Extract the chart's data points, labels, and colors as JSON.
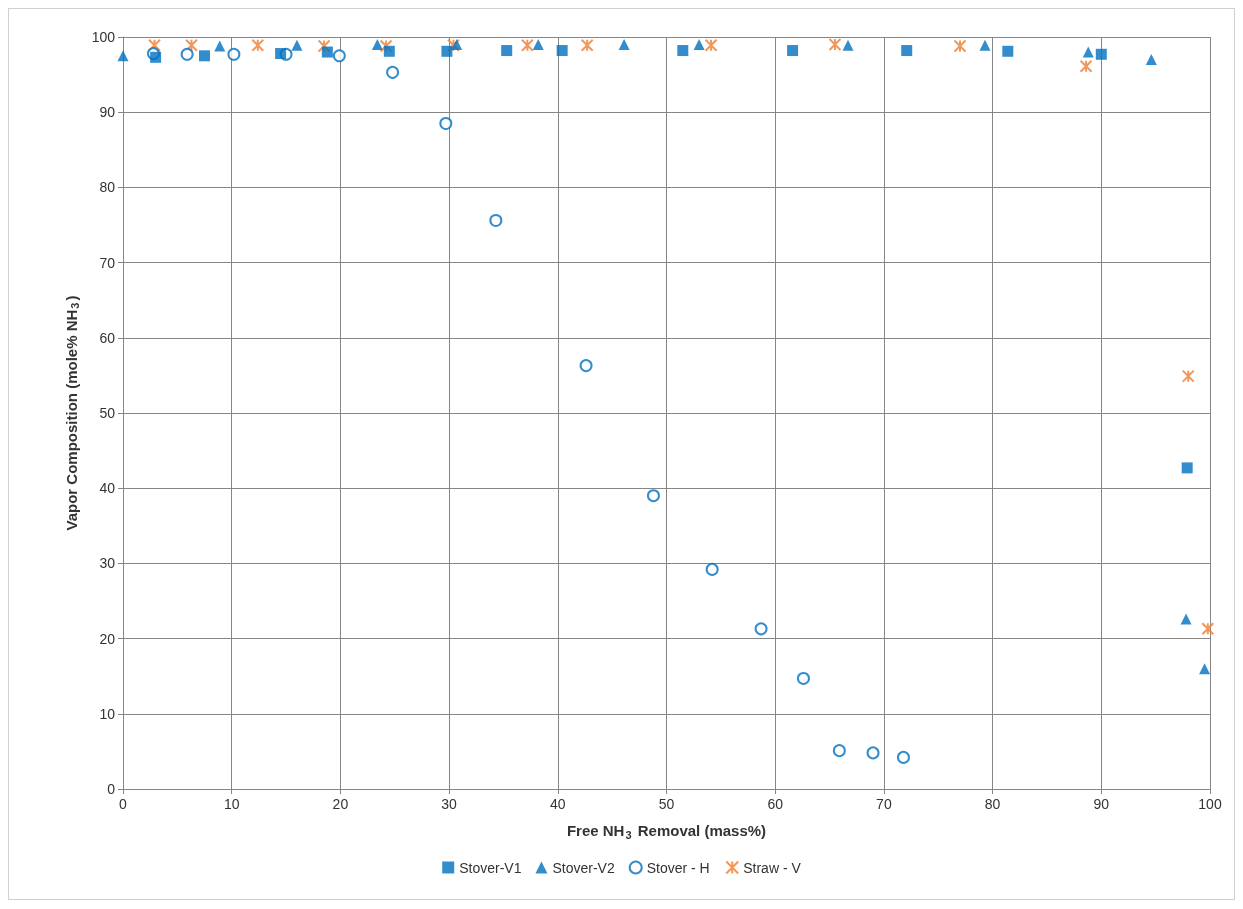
{
  "chart_data": {
    "type": "scatter",
    "xlabel": "Free NH$_{3}$ Removal (mass%)",
    "ylabel": "Vapor Composition (mole% NH$_{3}$)",
    "xlim": [
      0,
      100
    ],
    "xticks": [
      0,
      10,
      20,
      30,
      40,
      50,
      60,
      70,
      80,
      90,
      100
    ],
    "ylim": [
      0,
      100
    ],
    "yticks": [
      0,
      10,
      20,
      30,
      40,
      50,
      60,
      70,
      80,
      90,
      100
    ],
    "grid": true,
    "legend": "bottom",
    "series": [
      {
        "name": "Stover-V1",
        "color": "#0070c0",
        "marker": "square",
        "x": [
          3,
          7.5,
          14.5,
          18.8,
          24.5,
          29.8,
          35.3,
          40.4,
          51.5,
          61.6,
          72.1,
          81.4,
          90,
          97.9
        ],
        "values": [
          97.3,
          97.5,
          97.8,
          98,
          98.1,
          98.1,
          98.2,
          98.2,
          98.2,
          98.2,
          98.2,
          98.1,
          97.7,
          42.7
        ]
      },
      {
        "name": "Stover-V2",
        "color": "#0070c0",
        "marker": "triangle",
        "x": [
          0,
          8.9,
          16,
          23.4,
          30.7,
          38.2,
          46.1,
          53,
          66.7,
          79.3,
          88.8,
          94.6,
          97.8,
          99.5
        ],
        "values": [
          97.5,
          98.8,
          98.9,
          99,
          99,
          99,
          99,
          99,
          98.9,
          98.9,
          98,
          97,
          22.6,
          16
        ]
      },
      {
        "name": "Stover - H",
        "color": "#0070c0",
        "marker": "circle",
        "x": [
          2.8,
          5.9,
          10.2,
          15,
          19.9,
          24.8,
          29.7,
          34.3,
          42.6,
          48.8,
          54.2,
          58.7,
          62.6,
          65.9,
          69,
          71.8
        ],
        "values": [
          97.8,
          97.7,
          97.7,
          97.7,
          97.5,
          95.3,
          88.5,
          75.6,
          56.3,
          39,
          29.2,
          21.3,
          14.7,
          5.1,
          4.8,
          4.2
        ]
      },
      {
        "name": "Straw - V",
        "color": "#ed7d31",
        "marker": "cross",
        "x": [
          2.9,
          6.3,
          12.4,
          18.5,
          24.2,
          30.4,
          37.2,
          42.7,
          54.1,
          65.5,
          77,
          88.6,
          98,
          99.8
        ],
        "values": [
          98.9,
          98.9,
          98.9,
          98.8,
          98.8,
          98.9,
          98.9,
          98.9,
          98.9,
          99,
          98.8,
          96.1,
          54.9,
          21.3
        ]
      }
    ]
  }
}
